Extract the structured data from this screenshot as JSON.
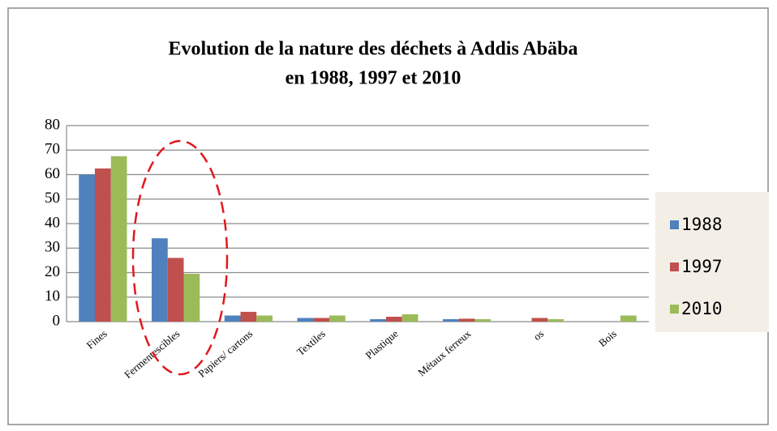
{
  "chart_data": {
    "type": "bar",
    "title_lines": [
      "Evolution de la nature des déchets à Addis Abäba",
      "en 1988, 1997 et 2010"
    ],
    "categories": [
      "Fines",
      "Fermentescibles",
      "Papiers/ cartons",
      "Textiles",
      "Plastique",
      "Métaux ferreux",
      "os",
      "Bois"
    ],
    "series": [
      {
        "name": "1988",
        "color": "#4f81bd",
        "values": [
          60,
          34,
          2.5,
          1.5,
          1,
          1,
          0,
          0
        ]
      },
      {
        "name": "1997",
        "color": "#c0504d",
        "values": [
          62.5,
          26,
          4,
          1.5,
          2,
          1.2,
          1.5,
          0
        ]
      },
      {
        "name": "2010",
        "color": "#9bbb59",
        "values": [
          67.5,
          19.5,
          2.5,
          2.5,
          3,
          1,
          1,
          2.5
        ]
      }
    ],
    "ylim": [
      0,
      80
    ],
    "yticks": [
      0,
      10,
      20,
      30,
      40,
      50,
      60,
      70,
      80
    ],
    "grid": true,
    "legend": "right"
  }
}
